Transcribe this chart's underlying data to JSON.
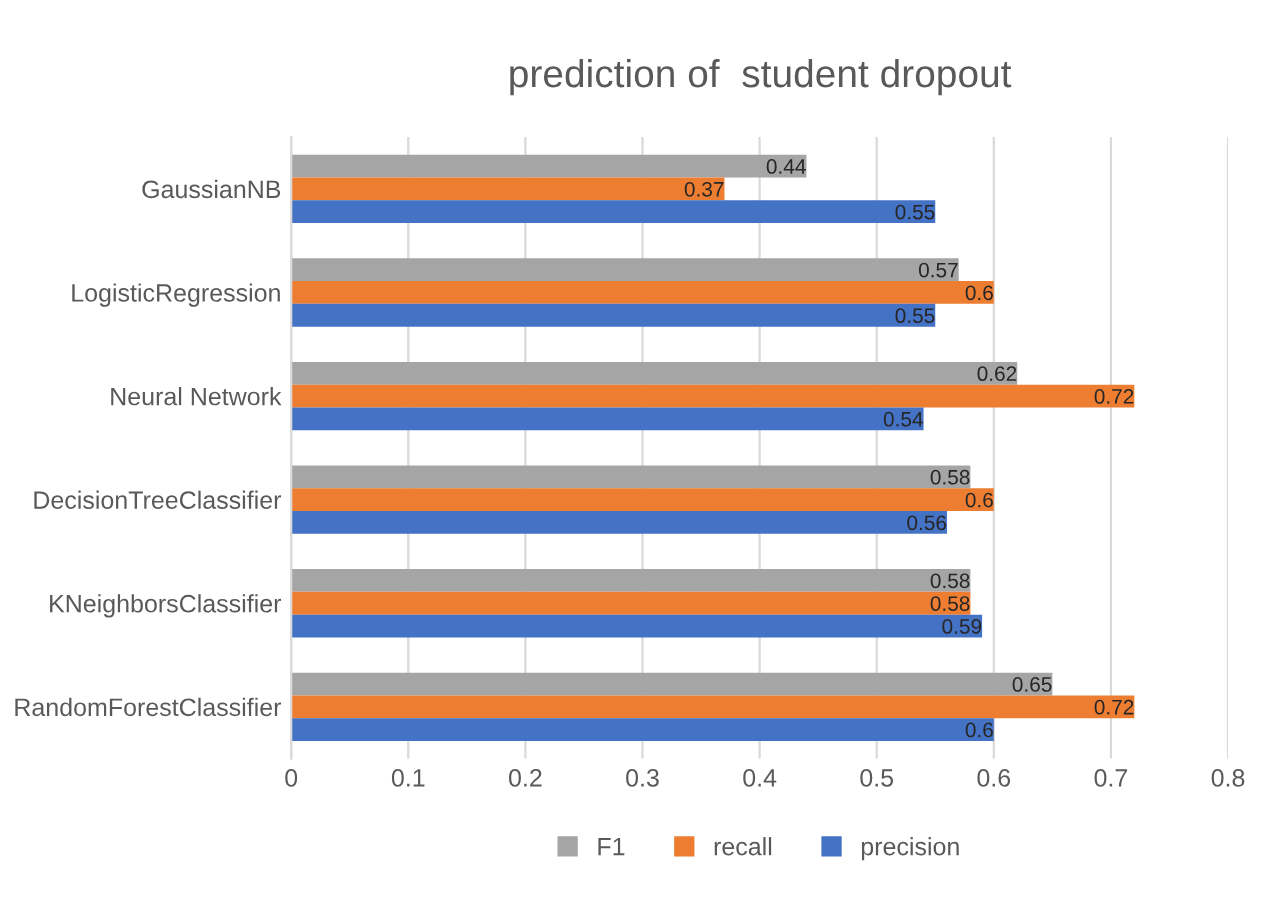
{
  "chart_data": {
    "type": "bar",
    "orientation": "horizontal",
    "title": "prediction of  student dropout",
    "categories": [
      "GaussianNB",
      "LogisticRegression",
      "Neural Network",
      "DecisionTreeClassifier",
      "KNeighborsClassifier",
      "RandomForestClassifier"
    ],
    "series": [
      {
        "name": "F1",
        "color": "#a5a5a5",
        "values": [
          0.44,
          0.57,
          0.62,
          0.58,
          0.58,
          0.65
        ]
      },
      {
        "name": "recall",
        "color": "#ed7d31",
        "values": [
          0.37,
          0.6,
          0.72,
          0.6,
          0.58,
          0.72
        ]
      },
      {
        "name": "precision",
        "color": "#4472c4",
        "values": [
          0.55,
          0.55,
          0.54,
          0.56,
          0.59,
          0.6
        ]
      }
    ],
    "xlim": [
      0,
      0.8
    ],
    "xticks": [
      0,
      0.1,
      0.2,
      0.3,
      0.4,
      0.5,
      0.6,
      0.7,
      0.8
    ],
    "grid": "x",
    "legend": "bottom",
    "data_labels": true
  }
}
